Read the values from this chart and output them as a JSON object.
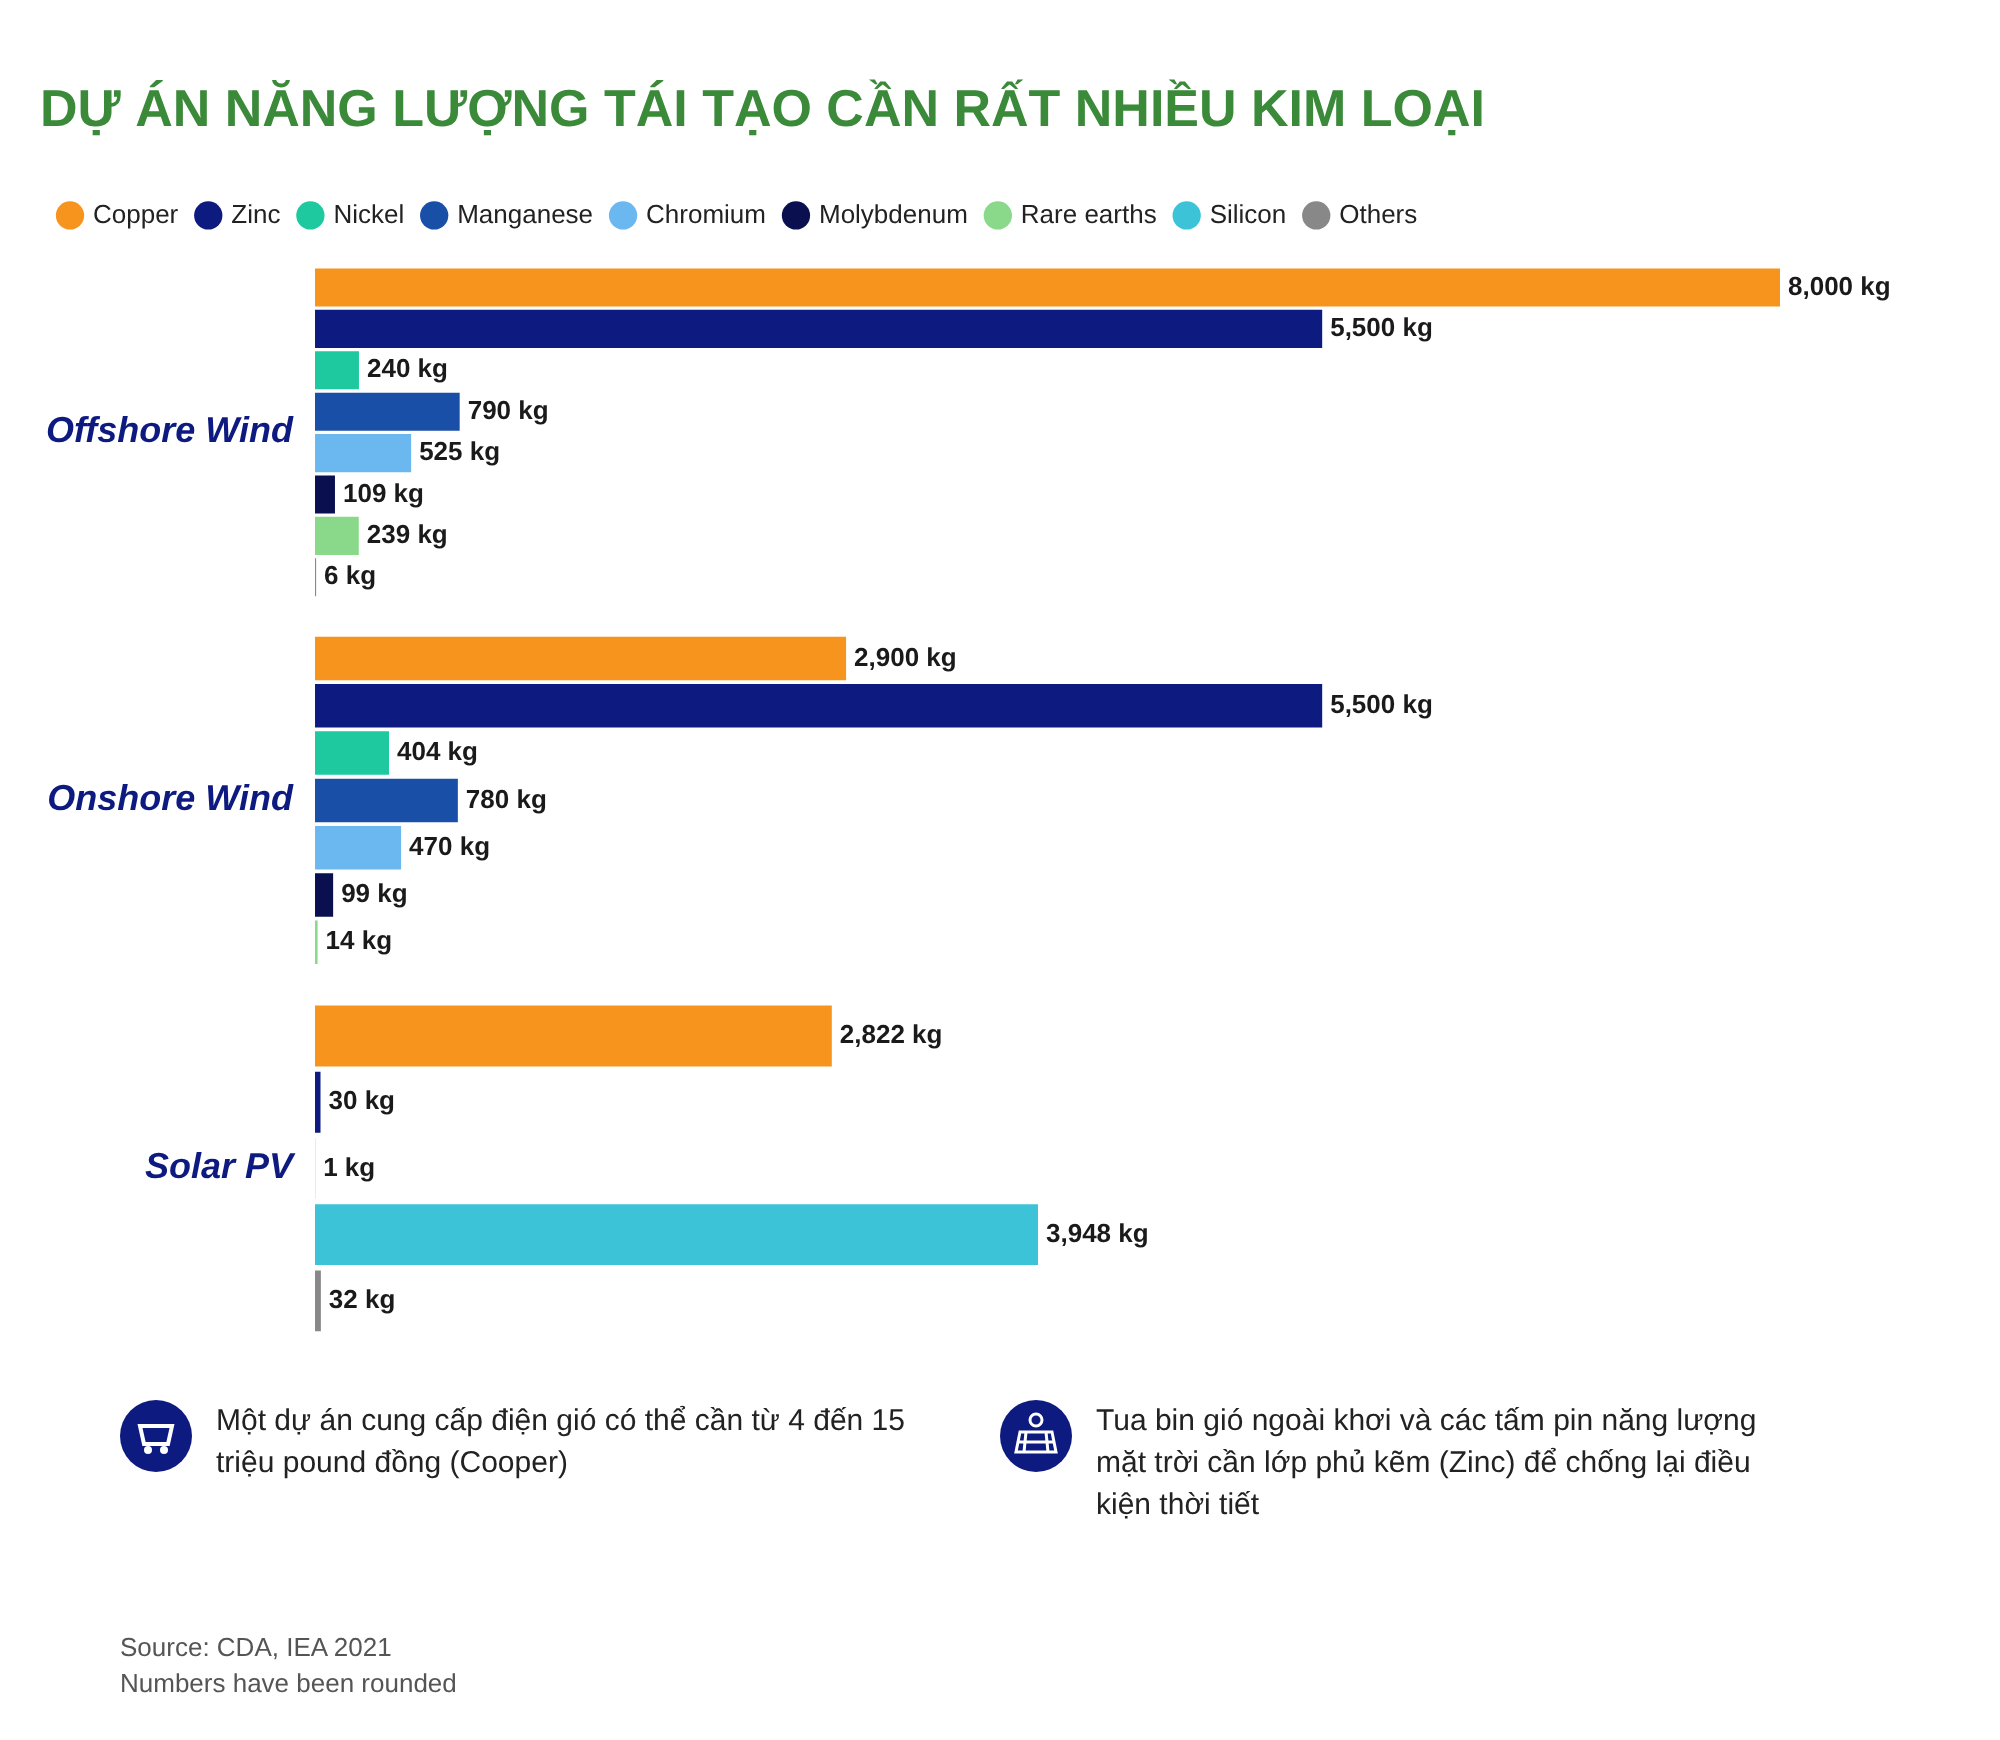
{
  "chart_data": {
    "type": "bar",
    "orientation": "horizontal",
    "title": "DỰ ÁN NĂNG LƯỢNG TÁI TẠO CẦN RẤT NHIỀU KIM LOẠI",
    "categories": [
      "Offshore Wind",
      "Onshore Wind",
      "Solar PV"
    ],
    "legend": "top",
    "tick_labels": "y",
    "grid": false,
    "series": [
      {
        "name": "Copper",
        "color": "#f7941d",
        "values": [
          8000,
          2900,
          2822
        ],
        "value_labels": [
          "8,000 kg",
          "2,900 kg",
          "2,822 kg"
        ]
      },
      {
        "name": "Zinc",
        "color": "#0d1a80",
        "values": [
          5500,
          5500,
          30
        ],
        "value_labels": [
          "5,500 kg",
          "5,500 kg",
          "30 kg"
        ]
      },
      {
        "name": "Nickel",
        "color": "#1ec9a0",
        "values": [
          240,
          404,
          1
        ],
        "value_labels": [
          "240 kg",
          "404 kg",
          "1 kg"
        ]
      },
      {
        "name": "Manganese",
        "color": "#1a4fa8",
        "values": [
          790,
          780,
          null
        ],
        "value_labels": [
          "790 kg",
          "780 kg",
          null
        ]
      },
      {
        "name": "Chromium",
        "color": "#6bb8f0",
        "values": [
          525,
          470,
          null
        ],
        "value_labels": [
          "525 kg",
          "470 kg",
          null
        ]
      },
      {
        "name": "Molybdenum",
        "color": "#0a0f4f",
        "values": [
          109,
          99,
          null
        ],
        "value_labels": [
          "109 kg",
          "99 kg",
          null
        ]
      },
      {
        "name": "Rare earths",
        "color": "#8ad98a",
        "values": [
          239,
          14,
          null
        ],
        "value_labels": [
          "239 kg",
          "14 kg",
          null
        ]
      },
      {
        "name": "Silicon",
        "color": "#3cc3d8",
        "values": [
          null,
          null,
          3948
        ],
        "value_labels": [
          null,
          null,
          "3,948 kg"
        ]
      },
      {
        "name": "Others",
        "color": "#888888",
        "values": [
          6,
          null,
          32
        ],
        "value_labels": [
          "6 kg",
          null,
          "32 kg"
        ]
      }
    ],
    "annotations": [
      "Một dự án cung cấp điện gió có thể cần từ 4 đến 15 triệu pound đồng (Cooper)",
      "Tua bin gió ngoài khơi và các tấm pin năng lượng mặt trời cần lớp phủ kẽm (Zinc) để chống lại điều kiện thời tiết",
      "Source: CDA, IEA 2021",
      "Numbers have been rounded"
    ]
  }
}
